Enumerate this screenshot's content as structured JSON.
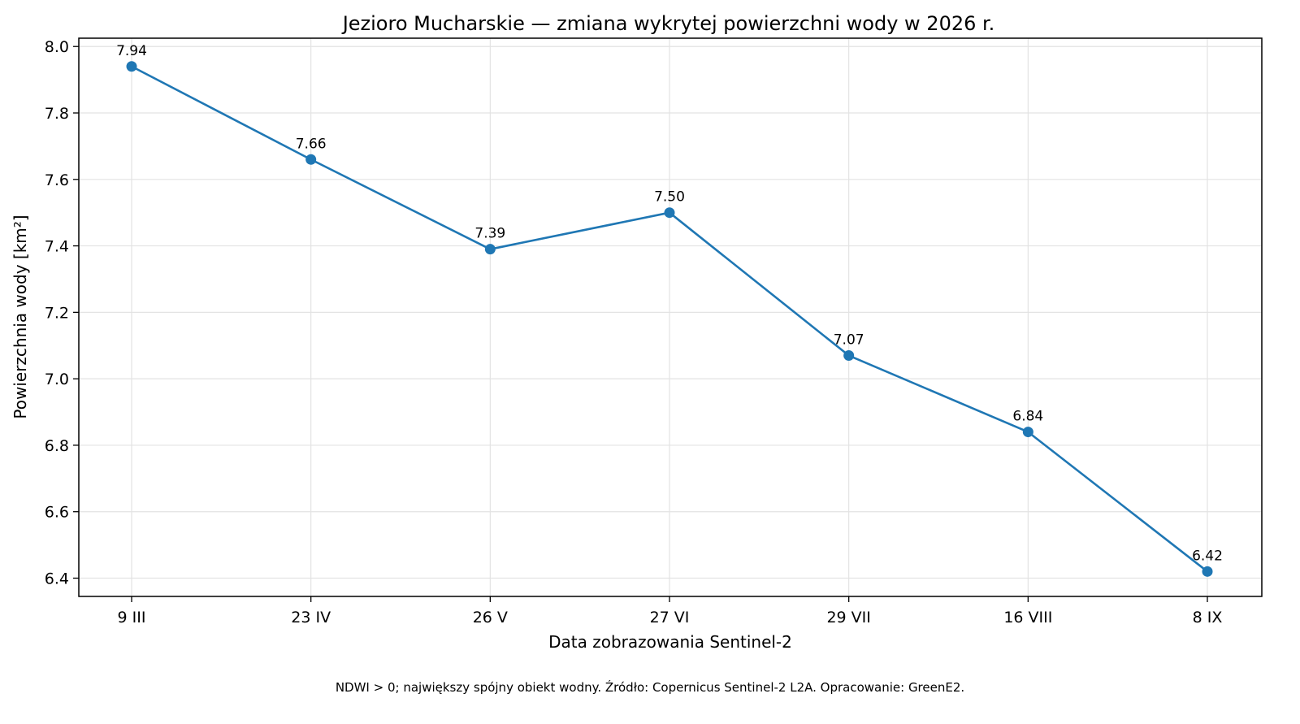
{
  "chart_data": {
    "type": "line",
    "title": "Jezioro Mucharskie — zmiana wykrytej powierzchni wody w 2026 r.",
    "xlabel": "Data zobrazowania Sentinel-2",
    "ylabel": "Powierzchnia wody [km²]",
    "categories": [
      "9 III",
      "23 IV",
      "26 V",
      "27 VI",
      "29 VII",
      "16 VIII",
      "8 IX"
    ],
    "series": [
      {
        "values": [
          7.94,
          7.66,
          7.39,
          7.5,
          7.07,
          6.84,
          6.42
        ],
        "labels": [
          "7.94",
          "7.66",
          "7.39",
          "7.50",
          "7.07",
          "6.84",
          "6.42"
        ],
        "color": "#1f77b4"
      }
    ],
    "ylim": [
      6.345,
      8.025
    ],
    "yticks": [
      6.4,
      6.6,
      6.8,
      7.0,
      7.2,
      7.4,
      7.6,
      7.8,
      8.0
    ],
    "ytick_labels": [
      "6.4",
      "6.6",
      "6.8",
      "7.0",
      "7.2",
      "7.4",
      "7.6",
      "7.8",
      "8.0"
    ],
    "grid": true,
    "legend": false
  },
  "footnote": "NDWI > 0; największy spójny obiekt wodny. Źródło: Copernicus Sentinel-2 L2A. Opracowanie: GreenE2."
}
